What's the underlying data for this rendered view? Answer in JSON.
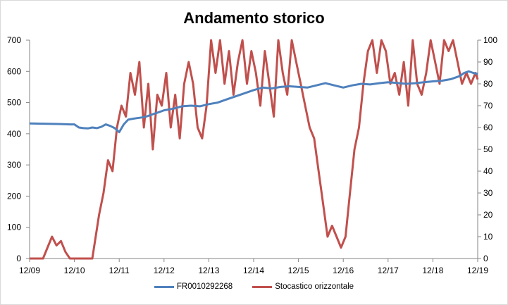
{
  "chart_data": {
    "type": "line",
    "title": "Andamento storico",
    "xlabel": "",
    "ylabel": "",
    "x_ticks": [
      "12/09",
      "12/10",
      "12/11",
      "12/12",
      "12/13",
      "12/14",
      "12/15",
      "12/16",
      "12/17",
      "12/18",
      "12/19"
    ],
    "x_range": [
      "2009-12",
      "2019-12"
    ],
    "ylim_left": [
      0,
      700
    ],
    "ylim_right": [
      0,
      100
    ],
    "y_ticks_left": [
      "0",
      "100",
      "200",
      "300",
      "400",
      "500",
      "600",
      "700"
    ],
    "y_ticks_right": [
      "0",
      "10",
      "20",
      "30",
      "40",
      "50",
      "60",
      "70",
      "80",
      "90",
      "100"
    ],
    "grid": false,
    "legend_position": "bottom",
    "series": [
      {
        "name": "FR0010292268",
        "axis": "left",
        "color": "#4f81bd",
        "x": [
          0,
          0.4,
          0.7,
          0.9,
          1.0,
          1.1,
          1.2,
          1.3,
          1.4,
          1.5,
          1.6,
          1.7,
          1.8,
          1.9,
          2.0,
          2.1,
          2.2,
          2.3,
          2.4,
          2.5,
          2.6,
          2.7,
          2.8,
          2.9,
          3.0,
          3.2,
          3.4,
          3.6,
          3.8,
          4.0,
          4.2,
          4.4,
          4.6,
          4.8,
          5.0,
          5.2,
          5.4,
          5.6,
          5.8,
          6.0,
          6.2,
          6.4,
          6.6,
          6.8,
          7.0,
          7.2,
          7.4,
          7.6,
          7.8,
          8.0,
          8.2,
          8.4,
          8.6,
          8.8,
          9.0,
          9.2,
          9.4,
          9.6,
          9.7,
          9.8,
          9.9,
          10.0
        ],
        "y": [
          433,
          432,
          431,
          430,
          430,
          420,
          418,
          417,
          420,
          418,
          422,
          430,
          425,
          418,
          405,
          430,
          445,
          448,
          450,
          452,
          455,
          460,
          465,
          470,
          475,
          480,
          488,
          490,
          488,
          495,
          500,
          510,
          520,
          530,
          540,
          548,
          545,
          550,
          552,
          550,
          548,
          555,
          562,
          555,
          548,
          555,
          560,
          558,
          562,
          565,
          563,
          560,
          562,
          565,
          568,
          570,
          575,
          585,
          595,
          600,
          595,
          592
        ]
      },
      {
        "name": "Stocastico orizzontale",
        "axis": "right",
        "color": "#c0504d",
        "x": [
          0,
          0.3,
          0.4,
          0.5,
          0.6,
          0.7,
          0.8,
          0.9,
          1.0,
          1.2,
          1.4,
          1.55,
          1.65,
          1.75,
          1.85,
          1.95,
          2.05,
          2.15,
          2.25,
          2.35,
          2.45,
          2.55,
          2.65,
          2.75,
          2.85,
          2.95,
          3.05,
          3.15,
          3.25,
          3.35,
          3.45,
          3.55,
          3.65,
          3.75,
          3.85,
          3.95,
          4.05,
          4.15,
          4.25,
          4.35,
          4.45,
          4.55,
          4.65,
          4.75,
          4.85,
          4.95,
          5.05,
          5.15,
          5.25,
          5.35,
          5.45,
          5.55,
          5.65,
          5.75,
          5.85,
          5.95,
          6.05,
          6.15,
          6.25,
          6.35,
          6.45,
          6.55,
          6.65,
          6.75,
          6.85,
          6.95,
          7.05,
          7.15,
          7.25,
          7.35,
          7.45,
          7.55,
          7.65,
          7.75,
          7.85,
          7.95,
          8.05,
          8.15,
          8.25,
          8.35,
          8.45,
          8.55,
          8.65,
          8.75,
          8.85,
          8.95,
          9.05,
          9.15,
          9.25,
          9.35,
          9.45,
          9.55,
          9.65,
          9.75,
          9.85,
          9.95,
          10.0
        ],
        "y": [
          0,
          0,
          5,
          10,
          6,
          8,
          3,
          0,
          0,
          0,
          0,
          20,
          30,
          45,
          40,
          60,
          70,
          65,
          85,
          75,
          90,
          60,
          80,
          50,
          75,
          70,
          85,
          60,
          75,
          55,
          80,
          90,
          80,
          60,
          55,
          70,
          100,
          85,
          100,
          80,
          95,
          75,
          90,
          100,
          80,
          95,
          85,
          70,
          95,
          80,
          65,
          100,
          85,
          75,
          100,
          90,
          80,
          70,
          60,
          55,
          40,
          25,
          10,
          15,
          10,
          5,
          10,
          30,
          50,
          60,
          80,
          95,
          100,
          85,
          100,
          95,
          80,
          85,
          75,
          90,
          70,
          100,
          80,
          75,
          85,
          100,
          90,
          80,
          100,
          95,
          100,
          90,
          80,
          85,
          80,
          85,
          82
        ]
      }
    ]
  }
}
